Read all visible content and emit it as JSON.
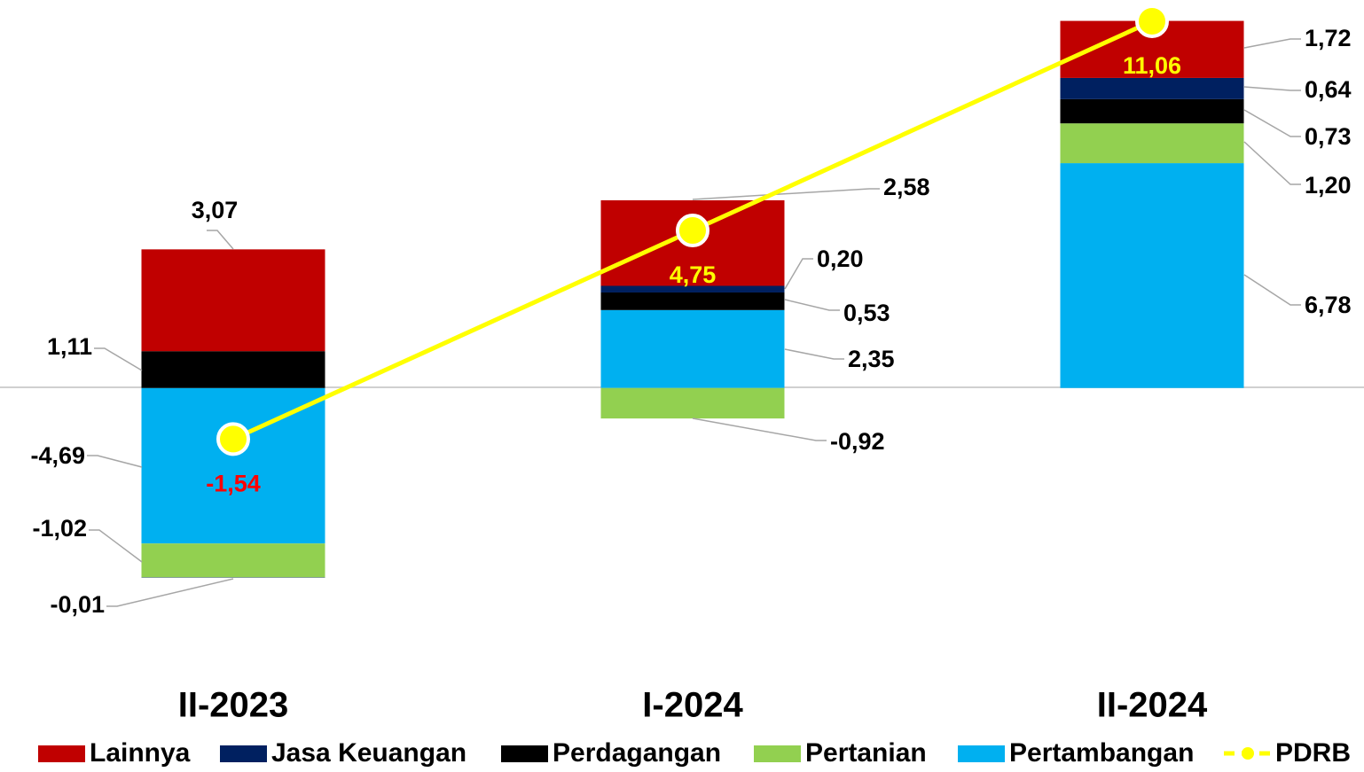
{
  "chart_data": {
    "type": "stacked-bar-line",
    "categories": [
      "II-2023",
      "I-2024",
      "II-2024"
    ],
    "ylim": [
      -8.5,
      11.7
    ],
    "series": [
      {
        "name": "Lainnya",
        "type": "bar",
        "color": "#c00000",
        "values": [
          3.07,
          2.58,
          1.72
        ],
        "value_labels": [
          "3,07",
          "2,58",
          "1,72"
        ]
      },
      {
        "name": "Jasa Keuangan",
        "type": "bar",
        "color": "#002060",
        "values": [
          -0.01,
          0.2,
          0.64
        ],
        "value_labels": [
          "-0,01",
          "0,20",
          "0,64"
        ]
      },
      {
        "name": "Perdagangan",
        "type": "bar",
        "color": "#000000",
        "values": [
          1.11,
          0.53,
          0.73
        ],
        "value_labels": [
          "1,11",
          "0,53",
          "0,73"
        ]
      },
      {
        "name": "Pertanian",
        "type": "bar",
        "color": "#92d050",
        "values": [
          -1.02,
          -0.92,
          1.2
        ],
        "value_labels": [
          "-1,02",
          "-0,92",
          "1,20"
        ]
      },
      {
        "name": "Pertambangan",
        "type": "bar",
        "color": "#00b0f0",
        "values": [
          -4.69,
          2.35,
          6.78
        ],
        "value_labels": [
          "-4,69",
          "2,35",
          "6,78"
        ]
      },
      {
        "name": "PDRB",
        "type": "line",
        "color": "#ffff00",
        "values": [
          -1.54,
          4.75,
          11.06
        ],
        "value_labels": [
          "-1,54",
          "4,75",
          "11,06"
        ],
        "label_colors": [
          "#ff0000",
          "#ffff00",
          "#ffff00"
        ]
      }
    ]
  }
}
